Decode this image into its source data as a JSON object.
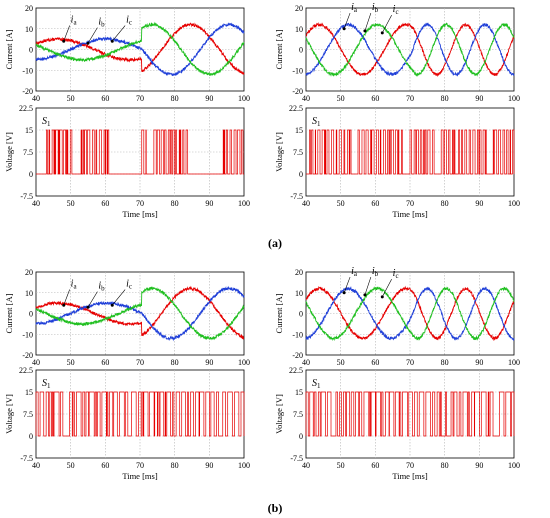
{
  "captions": {
    "a": "(a)",
    "b": "(b)"
  },
  "colors": {
    "ia": "#e60000",
    "ib": "#1f3fd8",
    "ic": "#1fbf1f",
    "pulse": "#e60000",
    "grid": "#b5b5b5"
  },
  "chart_data": [
    {
      "id": "a-left-current",
      "type": "line",
      "ylabel": "Current [A]",
      "xlim": [
        40,
        100
      ],
      "ylim": [
        -20,
        20
      ],
      "xticks": [
        "40",
        "50",
        "60",
        "70",
        "80",
        "90",
        "100"
      ],
      "yticks": [
        "-20",
        "-10",
        "0",
        "10",
        "20"
      ],
      "grid": true,
      "step_ms": 70.5,
      "series": [
        {
          "name": "ia",
          "key": "ia",
          "amp_before": 5,
          "amp_after": 12,
          "freq_before": 24,
          "freq_after": 30
        },
        {
          "name": "ib",
          "key": "ib",
          "amp_before": 5,
          "amp_after": 12,
          "freq_before": 24,
          "freq_after": 30
        },
        {
          "name": "ic",
          "key": "ic",
          "amp_before": 5,
          "amp_after": 12,
          "freq_before": 24,
          "freq_after": 30
        }
      ]
    },
    {
      "id": "a-right-current",
      "type": "line",
      "ylabel": "Current [A]",
      "xlim": [
        40,
        100
      ],
      "ylim": [
        -20,
        20
      ],
      "xticks": [
        "40",
        "50",
        "60",
        "70",
        "80",
        "90",
        "100"
      ],
      "yticks": [
        "-20",
        "-10",
        "0",
        "10",
        "20"
      ],
      "grid": true,
      "step_ms": 70.5,
      "series": [
        {
          "name": "ia",
          "key": "ia",
          "amp_before": 12,
          "amp_after": 12,
          "freq_before": 40,
          "freq_after": 60
        },
        {
          "name": "ib",
          "key": "ib",
          "amp_before": 12,
          "amp_after": 12,
          "freq_before": 40,
          "freq_after": 60
        },
        {
          "name": "ic",
          "key": "ic",
          "amp_before": 12,
          "amp_after": 12,
          "freq_before": 40,
          "freq_after": 60
        }
      ]
    },
    {
      "id": "a-left-switch",
      "type": "line",
      "series_label": "S1",
      "ylabel": "Voltage [V]",
      "xlabel": "Time [ms]",
      "xlim": [
        40,
        100
      ],
      "ylim": [
        -7.5,
        22.5
      ],
      "xticks": [
        "40",
        "50",
        "60",
        "70",
        "80",
        "90",
        "100"
      ],
      "yticks": [
        "-7.5",
        "0",
        "7.5",
        "15",
        "22.5"
      ],
      "grid": true,
      "high": 15,
      "pulse_groups": [
        [
          43,
          50.5
        ],
        [
          53,
          61
        ],
        [
          70.5,
          71.8
        ],
        [
          74,
          84.5
        ],
        [
          94,
          100
        ]
      ]
    },
    {
      "id": "a-right-switch",
      "type": "line",
      "series_label": "S1",
      "ylabel": "Voltage [V]",
      "xlabel": "Time [ms]",
      "xlim": [
        40,
        100
      ],
      "ylim": [
        -7.5,
        22.5
      ],
      "xticks": [
        "40",
        "50",
        "60",
        "70",
        "80",
        "90",
        "100"
      ],
      "yticks": [
        "-7.5",
        "0",
        "7.5",
        "15",
        "22.5"
      ],
      "grid": true,
      "high": 15,
      "pulse_groups": [
        [
          41,
          53
        ],
        [
          55,
          68
        ],
        [
          70,
          77
        ],
        [
          79,
          83
        ],
        [
          84,
          92
        ],
        [
          94,
          100
        ]
      ]
    },
    {
      "id": "b-left-current",
      "type": "line",
      "ylabel": "Current [A]",
      "xlim": [
        40,
        100
      ],
      "ylim": [
        -20,
        20
      ],
      "xticks": [
        "40",
        "50",
        "60",
        "70",
        "80",
        "90",
        "100"
      ],
      "yticks": [
        "-20",
        "-10",
        "0",
        "10",
        "20"
      ],
      "grid": true,
      "step_ms": 70.5,
      "series": [
        {
          "name": "ia",
          "key": "ia",
          "amp_before": 5,
          "amp_after": 12,
          "freq_before": 24,
          "freq_after": 30
        },
        {
          "name": "ib",
          "key": "ib",
          "amp_before": 5,
          "amp_after": 12,
          "freq_before": 24,
          "freq_after": 30
        },
        {
          "name": "ic",
          "key": "ic",
          "amp_before": 5,
          "amp_after": 12,
          "freq_before": 24,
          "freq_after": 30
        }
      ]
    },
    {
      "id": "b-right-current",
      "type": "line",
      "ylabel": "Current [A]",
      "xlim": [
        40,
        100
      ],
      "ylim": [
        -20,
        20
      ],
      "xticks": [
        "40",
        "50",
        "60",
        "70",
        "80",
        "90",
        "100"
      ],
      "yticks": [
        "-20",
        "-10",
        "0",
        "10",
        "20"
      ],
      "grid": true,
      "step_ms": 70.5,
      "series": [
        {
          "name": "ia",
          "key": "ia",
          "amp_before": 12,
          "amp_after": 12,
          "freq_before": 40,
          "freq_after": 60
        },
        {
          "name": "ib",
          "key": "ib",
          "amp_before": 12,
          "amp_after": 12,
          "freq_before": 40,
          "freq_after": 60
        },
        {
          "name": "ic",
          "key": "ic",
          "amp_before": 12,
          "amp_after": 12,
          "freq_before": 40,
          "freq_after": 60
        }
      ]
    },
    {
      "id": "b-left-switch",
      "type": "line",
      "series_label": "S1",
      "ylabel": "Voltage [V]",
      "xlabel": "Time [ms]",
      "xlim": [
        40,
        100
      ],
      "ylim": [
        -7.5,
        22.5
      ],
      "xticks": [
        "40",
        "50",
        "60",
        "70",
        "80",
        "90",
        "100"
      ],
      "yticks": [
        "-7.5",
        "0",
        "7.5",
        "15",
        "22.5"
      ],
      "grid": true,
      "high": 15,
      "pulse_groups": [
        [
          40,
          100
        ]
      ]
    },
    {
      "id": "b-right-switch",
      "type": "line",
      "series_label": "S1",
      "ylabel": "Voltage [V]",
      "xlabel": "Time [ms]",
      "xlim": [
        40,
        100
      ],
      "ylim": [
        -7.5,
        22.5
      ],
      "xticks": [
        "40",
        "50",
        "60",
        "70",
        "80",
        "90",
        "100"
      ],
      "yticks": [
        "-7.5",
        "0",
        "7.5",
        "15",
        "22.5"
      ],
      "grid": true,
      "high": 15,
      "pulse_groups": [
        [
          40,
          100
        ]
      ]
    }
  ]
}
